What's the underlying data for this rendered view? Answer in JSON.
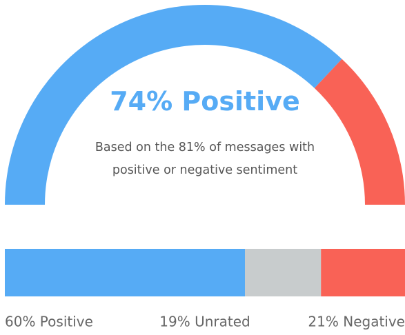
{
  "chart_data": [
    {
      "type": "gauge",
      "title": "74% Positive",
      "subtitle": "Based on the 81% of messages with positive or negative sentiment",
      "value": 74,
      "ylim": [
        0,
        100
      ],
      "colors": [
        "#56abf5",
        "#f96256"
      ]
    },
    {
      "type": "stacked_bar",
      "values": [
        60,
        19,
        21
      ],
      "value_labels": [
        "60% Positive",
        "19% Unrated",
        "21% Negative"
      ],
      "colors": [
        "#56abf5",
        "#c8cccd",
        "#f96256"
      ],
      "xlim": [
        0,
        100
      ]
    }
  ]
}
